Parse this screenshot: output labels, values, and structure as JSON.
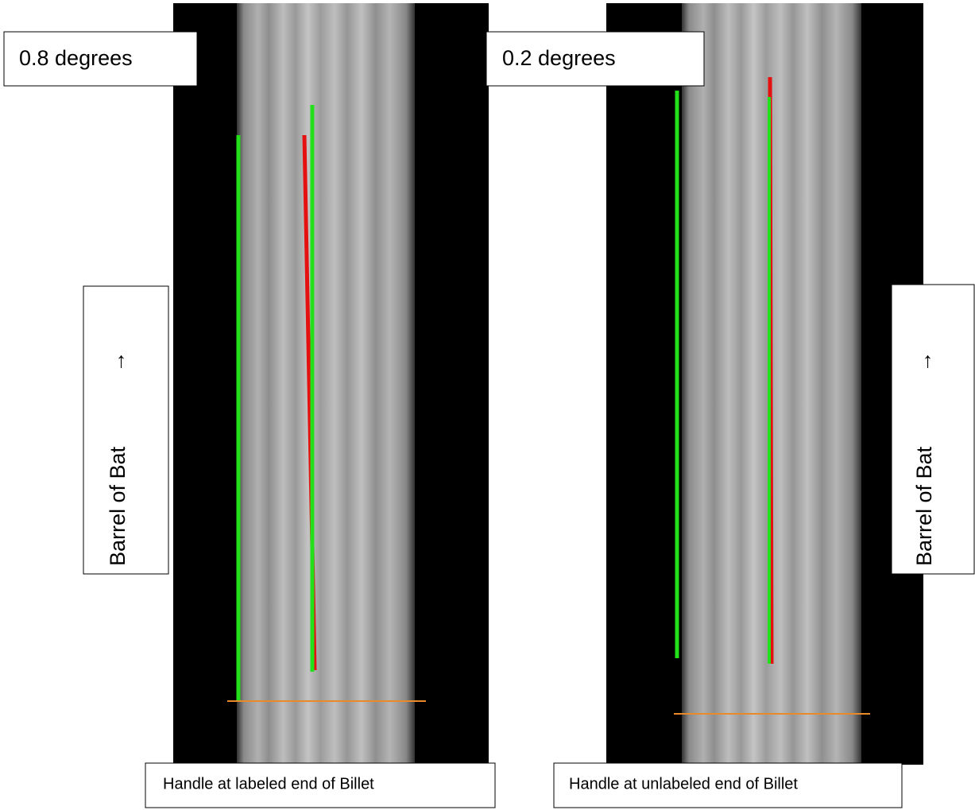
{
  "panels": [
    {
      "angle_label": "0.8 degrees",
      "side_label": "Barrel of Bat",
      "arrow": "→",
      "caption": "Handle at labeled end of Billet"
    },
    {
      "angle_label": "0.2 degrees",
      "side_label": "Barrel of Bat",
      "arrow": "→",
      "caption": "Handle at unlabeled end of Billet"
    }
  ]
}
